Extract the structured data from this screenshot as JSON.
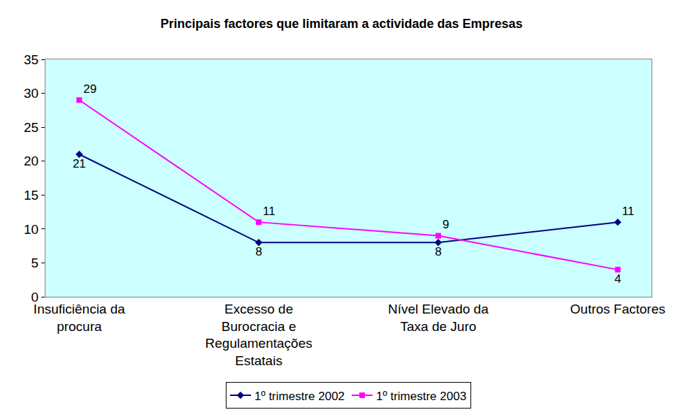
{
  "chart_data": {
    "type": "line",
    "title": "Principais factores que limitaram a actividade das Empresas",
    "categories": [
      "Insuficiência da procura",
      "Excesso de Burocracia e Regulamentações Estatais",
      "Nível Elevado da Taxa de Juro",
      "Outros Factores"
    ],
    "series": [
      {
        "name": "1º trimestre 2002",
        "color": "#000080",
        "marker": "diamond",
        "values": [
          21,
          8,
          8,
          11
        ]
      },
      {
        "name": "1º trimestre 2003",
        "color": "#FF00FF",
        "marker": "square",
        "values": [
          29,
          11,
          9,
          4
        ]
      }
    ],
    "ylim": [
      0,
      35
    ],
    "yticks": [
      0,
      5,
      10,
      15,
      20,
      25,
      30,
      35
    ],
    "grid": false,
    "data_labels": true,
    "legend": "bottom"
  }
}
